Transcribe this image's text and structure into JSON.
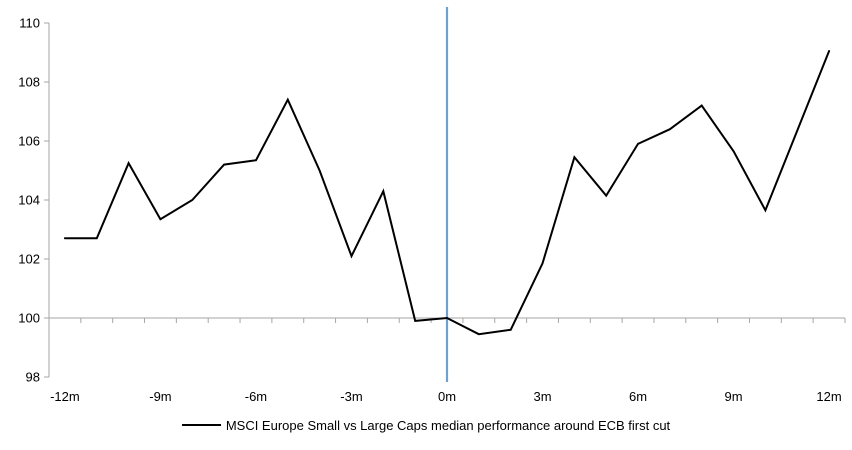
{
  "chart_data": {
    "type": "line",
    "title": "",
    "xlabel": "",
    "ylabel": "",
    "x": [
      -12,
      -11,
      -10,
      -9,
      -8,
      -7,
      -6,
      -5,
      -4,
      -3,
      -2,
      -1,
      0,
      1,
      2,
      3,
      4,
      5,
      6,
      7,
      8,
      9,
      10,
      11,
      12
    ],
    "series": [
      {
        "name": "MSCI Europe Small vs Large Caps median performance around ECB first cut",
        "color": "#000000",
        "values": [
          102.7,
          102.7,
          105.25,
          103.35,
          104.0,
          105.2,
          105.35,
          107.4,
          105.0,
          102.1,
          104.3,
          99.9,
          100.0,
          99.45,
          99.6,
          101.85,
          105.45,
          104.15,
          105.9,
          106.4,
          107.2,
          105.65,
          103.65,
          106.35,
          109.05
        ]
      }
    ],
    "ylim": [
      98,
      110
    ],
    "y_ticks": [
      98,
      100,
      102,
      104,
      106,
      108,
      110
    ],
    "x_axis_labels": [
      "-12m",
      "-9m",
      "-6m",
      "-3m",
      "0m",
      "3m",
      "6m",
      "9m",
      "12m"
    ],
    "category_axis_crosses_at": 100,
    "event_line": {
      "x_month": 0,
      "color": "#6FA0CE"
    },
    "grid": "off",
    "legend_position": "bottom-center",
    "axis_color": "#A6A6A6",
    "text_color": "#000000",
    "legend": {
      "label": "MSCI Europe Small vs Large Caps median performance around ECB first cut"
    }
  }
}
